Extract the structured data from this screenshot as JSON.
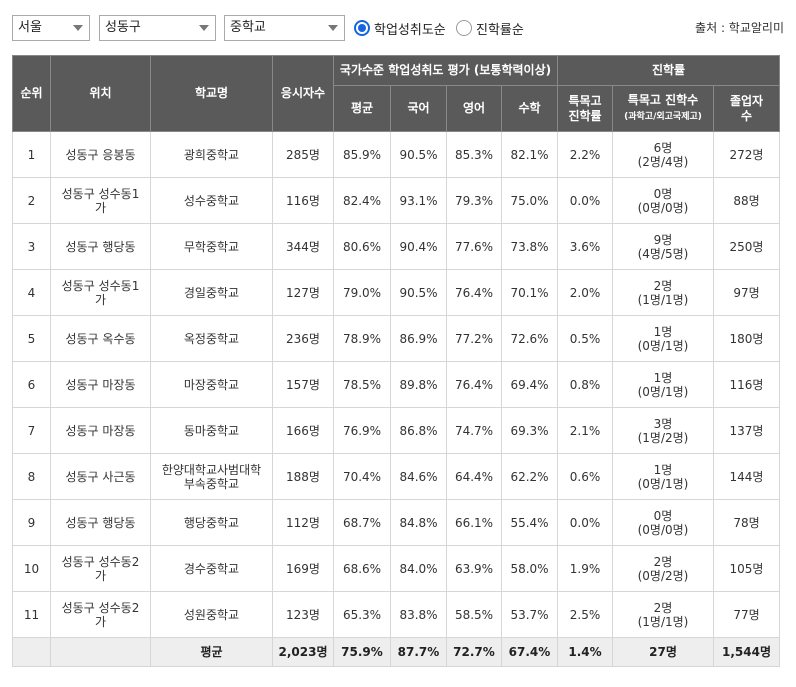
{
  "filters": {
    "region": "서울",
    "district": "성동구",
    "level": "중학교",
    "sort_achievement": "학업성취도순",
    "sort_admission": "진학률순",
    "source": "출처 : 학교알리미"
  },
  "headers": {
    "rank": "순위",
    "location": "위치",
    "school": "학교명",
    "test_takers": "응시자수",
    "group_achievement": "국가수준 학업성취도 평가 (보통학력이상)",
    "avg": "평균",
    "korean": "국어",
    "english": "영어",
    "math": "수학",
    "group_admission": "진학률",
    "special_rate_1": "특목고",
    "special_rate_2": "진학률",
    "special_count_1": "특목고 진학수",
    "special_count_2": "(과학고/외고국제고)",
    "graduates_1": "졸업자",
    "graduates_2": "수"
  },
  "rows": [
    {
      "rank": "1",
      "loc1": "성동구 응봉동",
      "loc2": "",
      "school1": "광희중학교",
      "school2": "",
      "takers": "285명",
      "avg": "85.9%",
      "kor": "90.5%",
      "eng": "85.3%",
      "math": "82.1%",
      "rate": "2.2%",
      "cnt1": "6명",
      "cnt2": "(2명/4명)",
      "grad": "272명"
    },
    {
      "rank": "2",
      "loc1": "성동구 성수동1",
      "loc2": "가",
      "school1": "성수중학교",
      "school2": "",
      "takers": "116명",
      "avg": "82.4%",
      "kor": "93.1%",
      "eng": "79.3%",
      "math": "75.0%",
      "rate": "0.0%",
      "cnt1": "0명",
      "cnt2": "(0명/0명)",
      "grad": "88명"
    },
    {
      "rank": "3",
      "loc1": "성동구 행당동",
      "loc2": "",
      "school1": "무학중학교",
      "school2": "",
      "takers": "344명",
      "avg": "80.6%",
      "kor": "90.4%",
      "eng": "77.6%",
      "math": "73.8%",
      "rate": "3.6%",
      "cnt1": "9명",
      "cnt2": "(4명/5명)",
      "grad": "250명"
    },
    {
      "rank": "4",
      "loc1": "성동구 성수동1",
      "loc2": "가",
      "school1": "경일중학교",
      "school2": "",
      "takers": "127명",
      "avg": "79.0%",
      "kor": "90.5%",
      "eng": "76.4%",
      "math": "70.1%",
      "rate": "2.0%",
      "cnt1": "2명",
      "cnt2": "(1명/1명)",
      "grad": "97명"
    },
    {
      "rank": "5",
      "loc1": "성동구 옥수동",
      "loc2": "",
      "school1": "옥정중학교",
      "school2": "",
      "takers": "236명",
      "avg": "78.9%",
      "kor": "86.9%",
      "eng": "77.2%",
      "math": "72.6%",
      "rate": "0.5%",
      "cnt1": "1명",
      "cnt2": "(0명/1명)",
      "grad": "180명"
    },
    {
      "rank": "6",
      "loc1": "성동구 마장동",
      "loc2": "",
      "school1": "마장중학교",
      "school2": "",
      "takers": "157명",
      "avg": "78.5%",
      "kor": "89.8%",
      "eng": "76.4%",
      "math": "69.4%",
      "rate": "0.8%",
      "cnt1": "1명",
      "cnt2": "(0명/1명)",
      "grad": "116명"
    },
    {
      "rank": "7",
      "loc1": "성동구 마장동",
      "loc2": "",
      "school1": "동마중학교",
      "school2": "",
      "takers": "166명",
      "avg": "76.9%",
      "kor": "86.8%",
      "eng": "74.7%",
      "math": "69.3%",
      "rate": "2.1%",
      "cnt1": "3명",
      "cnt2": "(1명/2명)",
      "grad": "137명"
    },
    {
      "rank": "8",
      "loc1": "성동구 사근동",
      "loc2": "",
      "school1": "한양대학교사범대학",
      "school2": "부속중학교",
      "takers": "188명",
      "avg": "70.4%",
      "kor": "84.6%",
      "eng": "64.4%",
      "math": "62.2%",
      "rate": "0.6%",
      "cnt1": "1명",
      "cnt2": "(0명/1명)",
      "grad": "144명"
    },
    {
      "rank": "9",
      "loc1": "성동구 행당동",
      "loc2": "",
      "school1": "행당중학교",
      "school2": "",
      "takers": "112명",
      "avg": "68.7%",
      "kor": "84.8%",
      "eng": "66.1%",
      "math": "55.4%",
      "rate": "0.0%",
      "cnt1": "0명",
      "cnt2": "(0명/0명)",
      "grad": "78명"
    },
    {
      "rank": "10",
      "loc1": "성동구 성수동2",
      "loc2": "가",
      "school1": "경수중학교",
      "school2": "",
      "takers": "169명",
      "avg": "68.6%",
      "kor": "84.0%",
      "eng": "63.9%",
      "math": "58.0%",
      "rate": "1.9%",
      "cnt1": "2명",
      "cnt2": "(0명/2명)",
      "grad": "105명"
    },
    {
      "rank": "11",
      "loc1": "성동구 성수동2",
      "loc2": "가",
      "school1": "성원중학교",
      "school2": "",
      "takers": "123명",
      "avg": "65.3%",
      "kor": "83.8%",
      "eng": "58.5%",
      "math": "53.7%",
      "rate": "2.5%",
      "cnt1": "2명",
      "cnt2": "(1명/1명)",
      "grad": "77명"
    }
  ],
  "average": {
    "label": "평균",
    "takers": "2,023명",
    "avg": "75.9%",
    "kor": "87.7%",
    "eng": "72.7%",
    "math": "67.4%",
    "rate": "1.4%",
    "cnt": "27명",
    "grad": "1,544명"
  }
}
